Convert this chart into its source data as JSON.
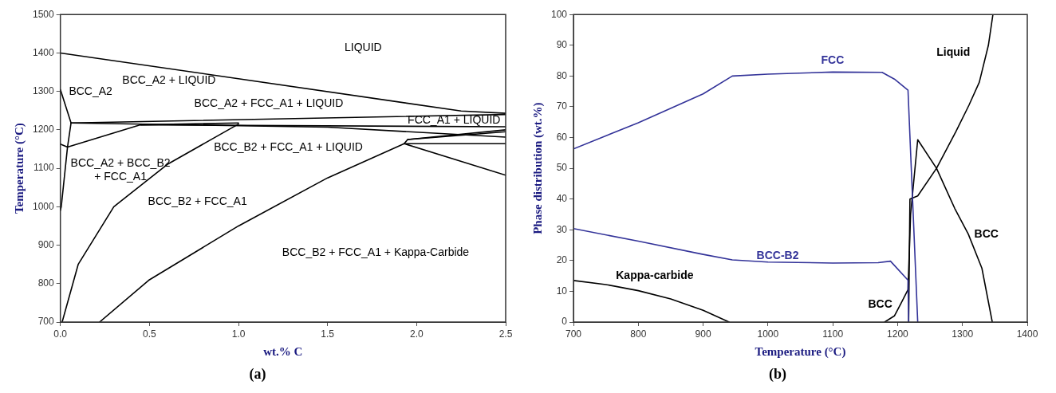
{
  "chart_data": [
    {
      "type": "line",
      "title": "(a)",
      "xlabel": "wt.% C",
      "ylabel": "Temperature (°C)",
      "marker": "none",
      "xlim": [
        0,
        2.5
      ],
      "ylim": [
        700,
        1500
      ],
      "xticks": [
        {
          "value": 0,
          "label": "0.0"
        },
        {
          "value": 0.5,
          "label": "0.5"
        },
        {
          "value": 1,
          "label": "1.0"
        },
        {
          "value": 1.5,
          "label": "1.5"
        },
        {
          "value": 2,
          "label": "2.0"
        },
        {
          "value": 2.5,
          "label": "2.5"
        }
      ],
      "yticks": [
        700,
        800,
        900,
        1000,
        1100,
        1200,
        1300,
        1400,
        1500
      ],
      "series": [
        {
          "color": "#000000",
          "x": [
            0,
            2.25,
            2.5
          ],
          "values": [
            1400,
            1249,
            1243
          ]
        },
        {
          "color": "#000000",
          "x": [
            0,
            0.06
          ],
          "values": [
            1305,
            1218
          ]
        },
        {
          "color": "#000000",
          "x": [
            0.06,
            0.04,
            0.005,
            0
          ],
          "values": [
            1218,
            1155,
            1000,
            990
          ]
        },
        {
          "color": "#000000",
          "x": [
            0,
            0.04,
            0.45,
            1.0
          ],
          "values": [
            1163,
            1155,
            1213,
            1218
          ]
        },
        {
          "color": "#000000",
          "x": [
            0.06,
            2.5
          ],
          "values": [
            1218,
            1240
          ]
        },
        {
          "color": "#000000",
          "x": [
            0.06,
            1.5,
            2.5
          ],
          "values": [
            1218,
            1207,
            1181
          ]
        },
        {
          "color": "#000000",
          "x": [
            0.45,
            2.5
          ],
          "values": [
            1213,
            1208
          ]
        },
        {
          "color": "#000000",
          "x": [
            0.01,
            0.1,
            0.3,
            0.6,
            1.0
          ],
          "values": [
            700,
            850,
            1000,
            1110,
            1215
          ]
        },
        {
          "color": "#000000",
          "x": [
            0.22,
            0.5,
            1.0,
            1.5,
            1.93,
            1.95,
            2.5
          ],
          "values": [
            700,
            810,
            950,
            1075,
            1164,
            1175,
            1200
          ]
        },
        {
          "color": "#000000",
          "x": [
            1.93,
            2.5
          ],
          "values": [
            1164,
            1082
          ]
        },
        {
          "color": "#000000",
          "x": [
            1.95,
            2.5
          ],
          "values": [
            1175,
            1195
          ]
        },
        {
          "color": "#000000",
          "x": [
            1.93,
            2.5
          ],
          "values": [
            1164,
            1164
          ]
        }
      ],
      "annotations": [
        "LIQUID",
        "BCC_A2 + LIQUID",
        "BCC_A2",
        "BCC_A2 + FCC_A1 + LIQUID",
        "FCC_A1 + LIQUID",
        "BCC_B2 + FCC_A1 + LIQUID",
        "BCC_A2 + BCC_B2\n+ FCC_A1",
        "BCC_B2 + FCC_A1",
        "BCC_B2 + FCC_A1 + Kappa-Carbide"
      ]
    },
    {
      "type": "line",
      "title": "(b)",
      "xlabel": "Temperature (°C)",
      "ylabel": "Phase distribution (wt.%)",
      "marker": "none",
      "xlim": [
        700,
        1400
      ],
      "ylim": [
        0,
        100
      ],
      "xticks": [
        700,
        800,
        900,
        1000,
        1100,
        1200,
        1300,
        1400
      ],
      "yticks": [
        0,
        10,
        20,
        30,
        40,
        50,
        60,
        70,
        80,
        90,
        100
      ],
      "series": [
        {
          "name": "FCC",
          "color": "#333399",
          "x": [
            700,
            800,
            900,
            945,
            1000,
            1100,
            1176,
            1195,
            1216,
            1231
          ],
          "values": [
            56.3,
            64.8,
            74.2,
            80,
            80.6,
            81.3,
            81.2,
            79,
            75.4,
            0
          ]
        },
        {
          "name": "BCC-B2",
          "color": "#333399",
          "x": [
            700,
            800,
            900,
            945,
            1000,
            1100,
            1170,
            1189,
            1216,
            1217
          ],
          "values": [
            30.4,
            26.3,
            22,
            20.2,
            19.5,
            19.2,
            19.3,
            19.8,
            13.6,
            0
          ]
        },
        {
          "name": "Kappa-carbide",
          "color": "#000000",
          "x": [
            700,
            750,
            800,
            850,
            900,
            940
          ],
          "values": [
            13.5,
            12.2,
            10.2,
            7.5,
            3.8,
            0
          ]
        },
        {
          "name": "BCC",
          "color": "#000000",
          "x": [
            1180,
            1195,
            1205,
            1216,
            1220,
            1231,
            1260,
            1288,
            1309,
            1330,
            1346
          ],
          "values": [
            0,
            2,
            6,
            10.5,
            35,
            59.3,
            50,
            37,
            28.6,
            17.5,
            0
          ]
        },
        {
          "name": "Liquid",
          "color": "#000000",
          "x": [
            1217,
            1219,
            1231,
            1260,
            1290,
            1310,
            1326,
            1340,
            1347
          ],
          "values": [
            0,
            40,
            41,
            50,
            62,
            70.5,
            78,
            90,
            100
          ]
        }
      ]
    }
  ]
}
